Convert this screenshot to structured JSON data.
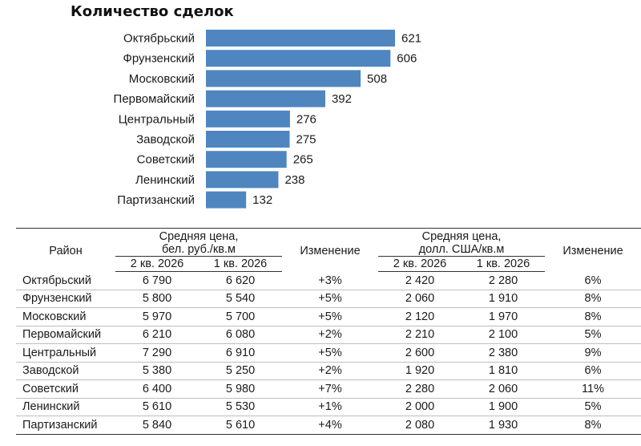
{
  "chart_data": {
    "type": "bar",
    "orientation": "horizontal",
    "title": "Количество сделок",
    "categories": [
      "Октябрьский",
      "Фрунзенский",
      "Московский",
      "Первомайский",
      "Центральный",
      "Заводской",
      "Советский",
      "Ленинский",
      "Партизанский"
    ],
    "values": [
      621,
      606,
      508,
      392,
      276,
      275,
      265,
      238,
      132
    ],
    "xlim": [
      0,
      640
    ],
    "grid": false,
    "legend": "none",
    "bar_color": "#4f86c0",
    "xlabel": "",
    "ylabel": ""
  },
  "table": {
    "headers": {
      "district": "Район",
      "price_byn": "Средняя цена,\nбел. руб./кв.м",
      "change_byn": "Изменение",
      "price_usd": "Средняя цена,\nдолл. США/кв.м",
      "change_usd": "Изменение",
      "q2": "2 кв. 2026",
      "q1": "1 кв. 2026"
    },
    "rows": [
      {
        "district": "Октябрьский",
        "byn_q2": "6 790",
        "byn_q1": "6 620",
        "byn_chg": "+3%",
        "usd_q2": "2 420",
        "usd_q1": "2 280",
        "usd_chg": "6%"
      },
      {
        "district": "Фрунзенский",
        "byn_q2": "5 800",
        "byn_q1": "5 540",
        "byn_chg": "+5%",
        "usd_q2": "2 060",
        "usd_q1": "1 910",
        "usd_chg": "8%"
      },
      {
        "district": "Московский",
        "byn_q2": "5 970",
        "byn_q1": "5 700",
        "byn_chg": "+5%",
        "usd_q2": "2 120",
        "usd_q1": "1 970",
        "usd_chg": "8%"
      },
      {
        "district": "Первомайский",
        "byn_q2": "6 210",
        "byn_q1": "6 080",
        "byn_chg": "+2%",
        "usd_q2": "2 210",
        "usd_q1": "2 100",
        "usd_chg": "5%"
      },
      {
        "district": "Центральный",
        "byn_q2": "7 290",
        "byn_q1": "6 910",
        "byn_chg": "+5%",
        "usd_q2": "2 600",
        "usd_q1": "2 380",
        "usd_chg": "9%"
      },
      {
        "district": "Заводской",
        "byn_q2": "5 380",
        "byn_q1": "5 250",
        "byn_chg": "+2%",
        "usd_q2": "1 920",
        "usd_q1": "1 810",
        "usd_chg": "6%"
      },
      {
        "district": "Советский",
        "byn_q2": "6 400",
        "byn_q1": "5 980",
        "byn_chg": "+7%",
        "usd_q2": "2 280",
        "usd_q1": "2 060",
        "usd_chg": "11%"
      },
      {
        "district": "Ленинский",
        "byn_q2": "5 610",
        "byn_q1": "5 530",
        "byn_chg": "+1%",
        "usd_q2": "2 000",
        "usd_q1": "1 900",
        "usd_chg": "5%"
      },
      {
        "district": "Партизанский",
        "byn_q2": "5 840",
        "byn_q1": "5 610",
        "byn_chg": "+4%",
        "usd_q2": "2 080",
        "usd_q1": "1 930",
        "usd_chg": "8%"
      }
    ]
  }
}
